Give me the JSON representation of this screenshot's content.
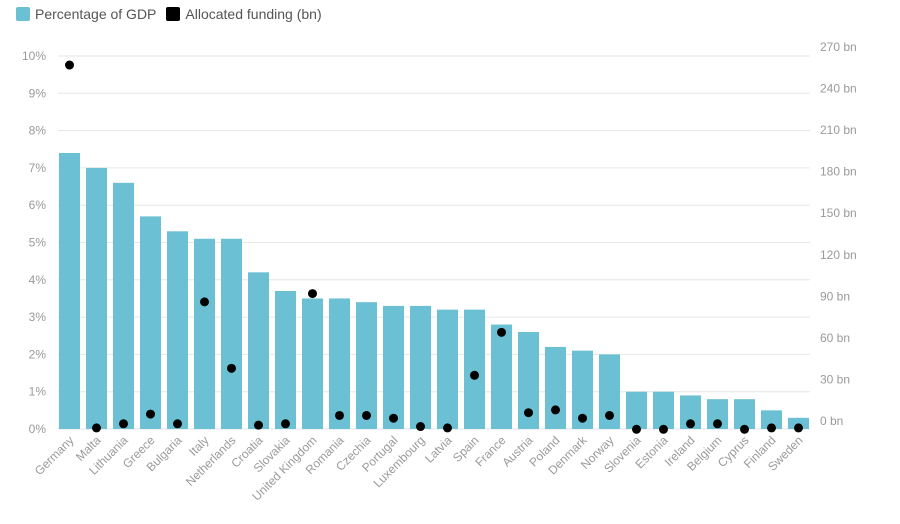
{
  "legend": {
    "gdp_label": "Percentage of GDP",
    "funding_label": "Allocated funding (bn)"
  },
  "colors": {
    "bar": "#6bc0d3",
    "dot": "#000000",
    "grid": "#e6e6e6",
    "text": "#9a9a9a"
  },
  "chart_data": {
    "type": "bar",
    "categories": [
      "Germany",
      "Malta",
      "Lithuania",
      "Greece",
      "Bulgaria",
      "Italy",
      "Netherlands",
      "Croatia",
      "Slovakia",
      "United Kingdom",
      "Romania",
      "Czechia",
      "Portugal",
      "Luxembourg",
      "Latvia",
      "Spain",
      "France",
      "Austria",
      "Poland",
      "Denmark",
      "Norway",
      "Slovenia",
      "Estonia",
      "Ireland",
      "Belgium",
      "Cyprus",
      "Finland",
      "Sweden"
    ],
    "series": [
      {
        "name": "Percentage of GDP",
        "type": "bar",
        "axis": "left",
        "unit": "%",
        "values": [
          7.4,
          7.0,
          6.6,
          5.7,
          5.3,
          5.1,
          5.1,
          4.2,
          3.7,
          3.5,
          3.5,
          3.4,
          3.3,
          3.3,
          3.2,
          3.2,
          2.8,
          2.6,
          2.2,
          2.1,
          2.0,
          1.0,
          1.0,
          0.9,
          0.8,
          0.8,
          0.5,
          0.3
        ]
      },
      {
        "name": "Allocated funding (bn)",
        "type": "scatter",
        "axis": "right",
        "unit": "bn",
        "values": [
          257,
          -5,
          -2,
          5,
          -2,
          86,
          38,
          -3,
          -2,
          92,
          4,
          4,
          2,
          -4,
          -5,
          33,
          64,
          6,
          8,
          2,
          4,
          -6,
          -6,
          -2,
          -2,
          -6,
          -5,
          -5
        ]
      }
    ],
    "yaxis_left": {
      "min": 0,
      "max": 10,
      "ticks": [
        "0%",
        "1%",
        "2%",
        "3%",
        "4%",
        "5%",
        "6%",
        "7%",
        "8%",
        "9%",
        "10%"
      ]
    },
    "yaxis_right": {
      "min": 0,
      "max": 270,
      "ticks": [
        "0 bn",
        "30 bn",
        "60 bn",
        "90 bn",
        "120 bn",
        "150 bn",
        "180 bn",
        "210 bn",
        "240 bn",
        "270 bn"
      ]
    },
    "grid": true,
    "legend_position": "top-left"
  }
}
